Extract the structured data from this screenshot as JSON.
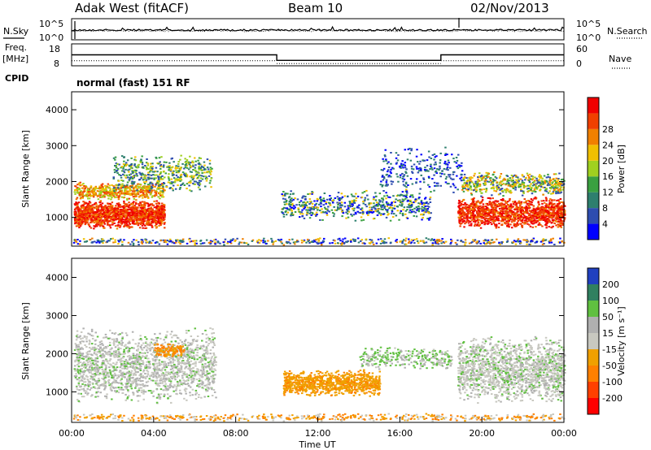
{
  "header": {
    "station": "Adak West (fitACF)",
    "beam": "Beam 10",
    "date": "02/Nov/2013"
  },
  "panel_labels": {
    "nsky": "N.Sky",
    "nsearch": "N.Search",
    "freq_line1": "Freq.",
    "freq_line2": "[MHz]",
    "nave": "Nave",
    "cpid": "CPID",
    "cpid_value": "normal (fast) 151 RF"
  },
  "colors": {
    "power_scale": [
      "#0000ff",
      "#2e4db0",
      "#2e7f6e",
      "#3aa040",
      "#a0d020",
      "#f0c000",
      "#f08000",
      "#f04000",
      "#f00000"
    ],
    "velocity_scale": [
      "#ff0000",
      "#ff4000",
      "#ff8000",
      "#f0a000",
      "#c8c8c0",
      "#b0b0b0",
      "#60c040",
      "#308060",
      "#2040c0",
      "#1818ff"
    ]
  },
  "chart_data": [
    {
      "type": "line",
      "name": "noise-panel",
      "ylabel": "N.Sky",
      "ylabel_right": "N.Search",
      "yticks_left": [
        "10^5",
        "10^0"
      ],
      "yticks_right": [
        "10^5",
        "10^0"
      ]
    },
    {
      "type": "line",
      "name": "frequency-nave-panel",
      "ylabel": "Freq. [MHz]",
      "ylabel_right": "Nave",
      "yticks_left": [
        "18",
        "8"
      ],
      "yticks_right": [
        "60",
        "0"
      ],
      "ylim_left": [
        8,
        18
      ],
      "ylim_right": [
        0,
        60
      ],
      "freq_segments": [
        {
          "x": [
            0,
            10
          ],
          "y": 13
        },
        {
          "x": [
            10,
            18
          ],
          "y": 10.5
        },
        {
          "x": [
            18,
            24
          ],
          "y": 13
        }
      ],
      "nave_segments": [
        {
          "x": [
            0,
            10
          ],
          "y": 14
        },
        {
          "x": [
            10,
            18
          ],
          "y": 6
        },
        {
          "x": [
            18,
            24
          ],
          "y": 14
        }
      ]
    },
    {
      "type": "heatmap",
      "name": "power-panel",
      "ylabel": "Slant Range [km]",
      "colorbar_label": "Power [dB]",
      "colorbar_ticks": [
        "4",
        "8",
        "12",
        "16",
        "20",
        "24",
        "28"
      ],
      "yticks": [
        "1000",
        "2000",
        "3000",
        "4000"
      ],
      "ylim": [
        200,
        4500
      ],
      "xlim": [
        0,
        24
      ]
    },
    {
      "type": "heatmap",
      "name": "velocity-panel",
      "ylabel": "Slant Range [km]",
      "colorbar_label": "Velocity [m s⁻¹]",
      "colorbar_ticks": [
        "-200",
        "-100",
        "-50",
        "-15",
        "15",
        "50",
        "100",
        "200"
      ],
      "yticks": [
        "1000",
        "2000",
        "3000",
        "4000"
      ],
      "ylim": [
        200,
        4500
      ],
      "xlim": [
        0,
        24
      ],
      "xlabel": "Time UT",
      "xticks": [
        "00:00",
        "04:00",
        "08:00",
        "12:00",
        "16:00",
        "20:00",
        "00:00"
      ]
    }
  ]
}
